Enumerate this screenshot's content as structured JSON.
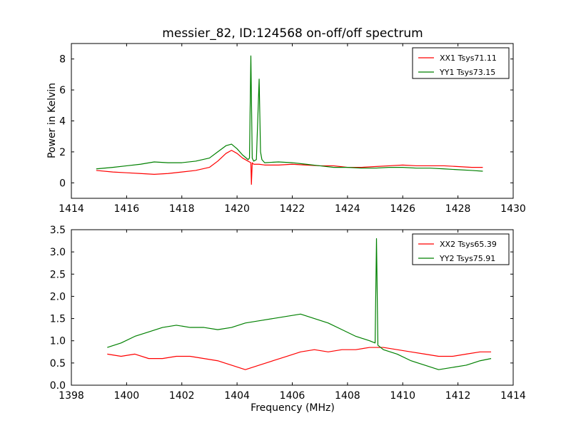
{
  "chart_data": [
    {
      "type": "line",
      "title": "messier_82, ID:124568 on-off/off spectrum",
      "xlabel": "",
      "ylabel": "Power in Kelvin",
      "xlim": [
        1414,
        1430
      ],
      "ylim": [
        -1,
        9
      ],
      "xticks": [
        1414,
        1416,
        1418,
        1420,
        1422,
        1424,
        1426,
        1428,
        1430
      ],
      "yticks": [
        0,
        2,
        4,
        6,
        8
      ],
      "legend_position": "top-right",
      "series": [
        {
          "name": "XX1 Tsys71.11",
          "color": "#ff0000",
          "x": [
            1414.9,
            1415.5,
            1416.0,
            1416.5,
            1417.0,
            1417.5,
            1418.0,
            1418.5,
            1419.0,
            1419.3,
            1419.6,
            1419.8,
            1420.0,
            1420.2,
            1420.4,
            1420.5,
            1420.52,
            1420.55,
            1420.6,
            1420.8,
            1421.0,
            1421.5,
            1422.0,
            1422.5,
            1423.0,
            1423.5,
            1424.0,
            1424.5,
            1425.0,
            1425.5,
            1426.0,
            1426.5,
            1427.0,
            1427.5,
            1428.0,
            1428.5,
            1428.9
          ],
          "y": [
            0.8,
            0.7,
            0.65,
            0.6,
            0.55,
            0.6,
            0.7,
            0.8,
            1.0,
            1.4,
            1.9,
            2.1,
            1.9,
            1.6,
            1.4,
            1.3,
            -0.1,
            1.3,
            1.2,
            1.2,
            1.15,
            1.15,
            1.2,
            1.15,
            1.1,
            1.1,
            1.0,
            1.0,
            1.05,
            1.1,
            1.15,
            1.1,
            1.1,
            1.1,
            1.05,
            1.0,
            1.0
          ]
        },
        {
          "name": "YY1 Tsys73.15",
          "color": "#008000",
          "x": [
            1414.9,
            1415.5,
            1416.0,
            1416.5,
            1417.0,
            1417.5,
            1418.0,
            1418.5,
            1419.0,
            1419.3,
            1419.6,
            1419.8,
            1420.0,
            1420.2,
            1420.4,
            1420.45,
            1420.5,
            1420.55,
            1420.6,
            1420.7,
            1420.8,
            1420.85,
            1420.9,
            1421.0,
            1421.5,
            1422.0,
            1422.5,
            1423.0,
            1423.5,
            1424.0,
            1424.5,
            1425.0,
            1425.5,
            1426.0,
            1426.5,
            1427.0,
            1427.5,
            1428.0,
            1428.5,
            1428.9
          ],
          "y": [
            0.9,
            1.0,
            1.1,
            1.2,
            1.35,
            1.3,
            1.3,
            1.4,
            1.6,
            2.0,
            2.4,
            2.5,
            2.2,
            1.8,
            1.5,
            1.6,
            8.2,
            1.6,
            1.4,
            1.5,
            6.7,
            2.0,
            1.5,
            1.3,
            1.35,
            1.3,
            1.2,
            1.1,
            1.0,
            1.0,
            0.95,
            0.95,
            1.0,
            1.0,
            0.95,
            0.95,
            0.9,
            0.85,
            0.8,
            0.75
          ]
        }
      ]
    },
    {
      "type": "line",
      "title": "",
      "xlabel": "Frequency (MHz)",
      "ylabel": "",
      "xlim": [
        1398,
        1414
      ],
      "ylim": [
        0.0,
        3.5
      ],
      "xticks": [
        1398,
        1400,
        1402,
        1404,
        1406,
        1408,
        1410,
        1412,
        1414
      ],
      "xtick_labels": [
        "1398",
        "1400",
        "1402",
        "1404",
        "1406",
        "1408",
        "1410",
        "1412",
        "1414"
      ],
      "yticks": [
        0.0,
        0.5,
        1.0,
        1.5,
        2.0,
        2.5,
        3.0,
        3.5
      ],
      "ytick_labels": [
        "0.0",
        "0.5",
        "1.0",
        "1.5",
        "2.0",
        "2.5",
        "3.0",
        "3.5"
      ],
      "legend_position": "top-right",
      "series": [
        {
          "name": "XX2 Tsys65.39",
          "color": "#ff0000",
          "x": [
            1399.3,
            1399.8,
            1400.3,
            1400.8,
            1401.3,
            1401.8,
            1402.3,
            1402.8,
            1403.3,
            1403.8,
            1404.3,
            1404.8,
            1405.3,
            1405.8,
            1406.3,
            1406.8,
            1407.3,
            1407.8,
            1408.3,
            1408.8,
            1409.3,
            1409.8,
            1410.3,
            1410.8,
            1411.3,
            1411.8,
            1412.3,
            1412.8,
            1413.2
          ],
          "y": [
            0.7,
            0.65,
            0.7,
            0.6,
            0.6,
            0.65,
            0.65,
            0.6,
            0.55,
            0.45,
            0.35,
            0.45,
            0.55,
            0.65,
            0.75,
            0.8,
            0.75,
            0.8,
            0.8,
            0.85,
            0.85,
            0.8,
            0.75,
            0.7,
            0.65,
            0.65,
            0.7,
            0.75,
            0.75
          ]
        },
        {
          "name": "YY2 Tsys75.91",
          "color": "#008000",
          "x": [
            1399.3,
            1399.8,
            1400.3,
            1400.8,
            1401.3,
            1401.8,
            1402.3,
            1402.8,
            1403.3,
            1403.8,
            1404.3,
            1404.8,
            1405.3,
            1405.8,
            1406.3,
            1406.8,
            1407.3,
            1407.8,
            1408.3,
            1408.8,
            1409.0,
            1409.05,
            1409.1,
            1409.3,
            1409.8,
            1410.3,
            1410.8,
            1411.3,
            1411.8,
            1412.3,
            1412.8,
            1413.2
          ],
          "y": [
            0.85,
            0.95,
            1.1,
            1.2,
            1.3,
            1.35,
            1.3,
            1.3,
            1.25,
            1.3,
            1.4,
            1.45,
            1.5,
            1.55,
            1.6,
            1.5,
            1.4,
            1.25,
            1.1,
            1.0,
            0.95,
            3.3,
            0.9,
            0.8,
            0.7,
            0.55,
            0.45,
            0.35,
            0.4,
            0.45,
            0.55,
            0.6
          ]
        }
      ]
    }
  ]
}
